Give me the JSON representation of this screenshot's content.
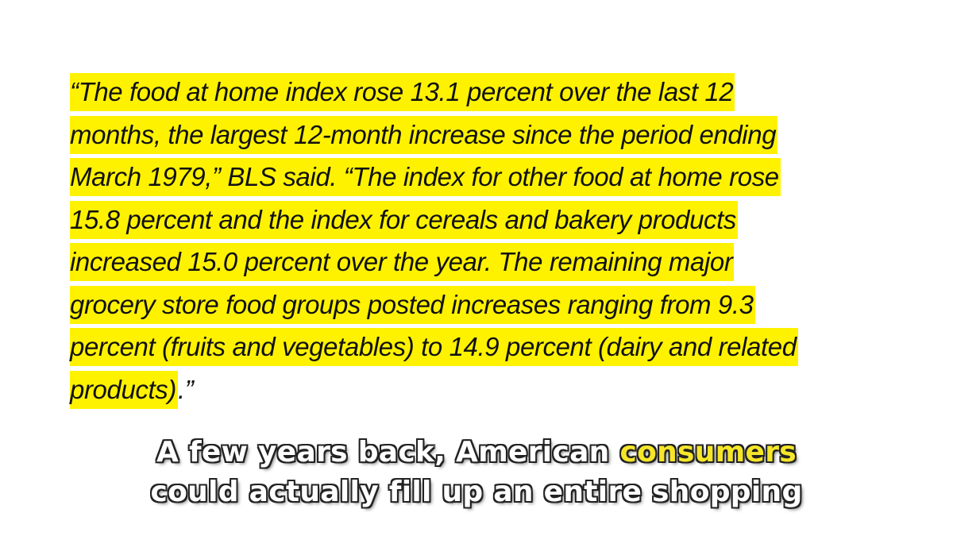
{
  "quote": {
    "lines": [
      {
        "highlighted": "“The food at home index rose 13.1 percent over the last 12",
        "plain": ""
      },
      {
        "highlighted": "months, the largest 12-month increase since the period ending",
        "plain": ""
      },
      {
        "highlighted": "March 1979,” BLS said. “The index for other food at home rose",
        "plain": ""
      },
      {
        "highlighted": "15.8 percent and the index for cereals and bakery products",
        "plain": ""
      },
      {
        "highlighted": "increased 15.0 percent over the year. The remaining major",
        "plain": ""
      },
      {
        "highlighted": "grocery store food groups posted increases ranging from 9.3",
        "plain": ""
      },
      {
        "highlighted": "percent (fruits and vegetables) to 14.9 percent (dairy and related",
        "plain": ""
      },
      {
        "highlighted": "products)",
        "plain": ".”"
      }
    ],
    "highlight_color": "#fff200"
  },
  "caption": {
    "line1_before": "A few years back, American ",
    "line1_keyword": "consumers",
    "line2": "could actually fill up an entire shopping",
    "keyword_color": "#f5e62a"
  }
}
